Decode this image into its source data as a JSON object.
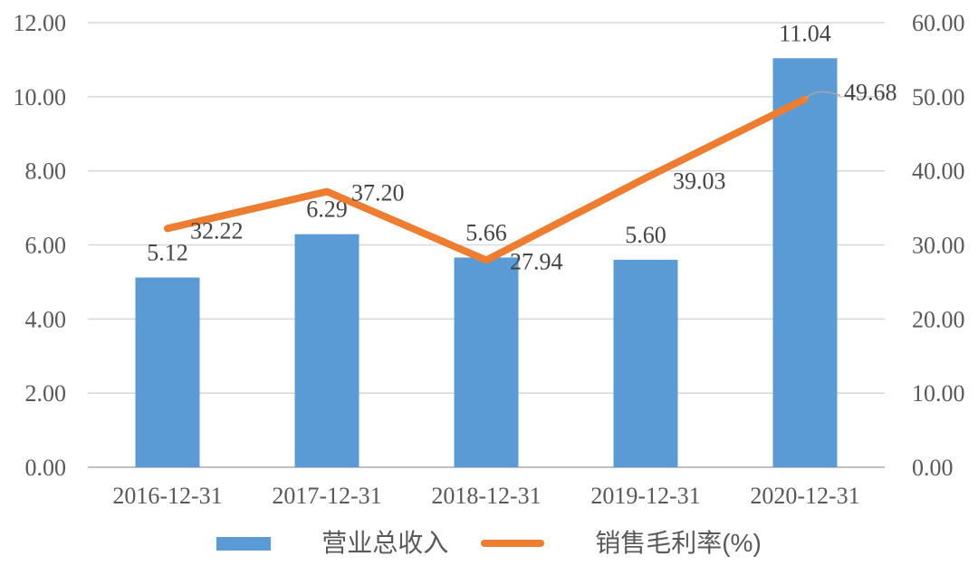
{
  "chart_data": {
    "type": "bar",
    "subtype": "combo-bar-line-dual-axis",
    "categories": [
      "2016-12-31",
      "2017-12-31",
      "2018-12-31",
      "2019-12-31",
      "2020-12-31"
    ],
    "series": [
      {
        "name": "营业总收入",
        "type": "bar",
        "axis": "left",
        "values": [
          5.12,
          6.29,
          5.66,
          5.6,
          11.04
        ],
        "value_labels": [
          "5.12",
          "6.29",
          "5.66",
          "5.60",
          "11.04"
        ]
      },
      {
        "name": "销售毛利率(%)",
        "type": "line",
        "axis": "right",
        "values": [
          32.22,
          37.2,
          27.94,
          39.03,
          49.68
        ],
        "value_labels": [
          "32.22",
          "37.20",
          "27.94",
          "39.03",
          "49.68"
        ]
      }
    ],
    "left_axis": {
      "min": 0,
      "max": 12,
      "step": 2,
      "tick_labels": [
        "0.00",
        "2.00",
        "4.00",
        "6.00",
        "8.00",
        "10.00",
        "12.00"
      ]
    },
    "right_axis": {
      "min": 0,
      "max": 60,
      "step": 10,
      "tick_labels": [
        "0.00",
        "10.00",
        "20.00",
        "30.00",
        "40.00",
        "50.00",
        "60.00"
      ]
    },
    "grid": true,
    "legend_position": "bottom"
  },
  "colors": {
    "bar": "#5B9BD5",
    "line": "#ED7D31",
    "grid": "#D9D9D9",
    "axis_line": "#BFBFBF",
    "tick_text": "#595959",
    "label_text": "#444444",
    "leader": "#A6A6A6",
    "background": "#FFFFFF"
  }
}
